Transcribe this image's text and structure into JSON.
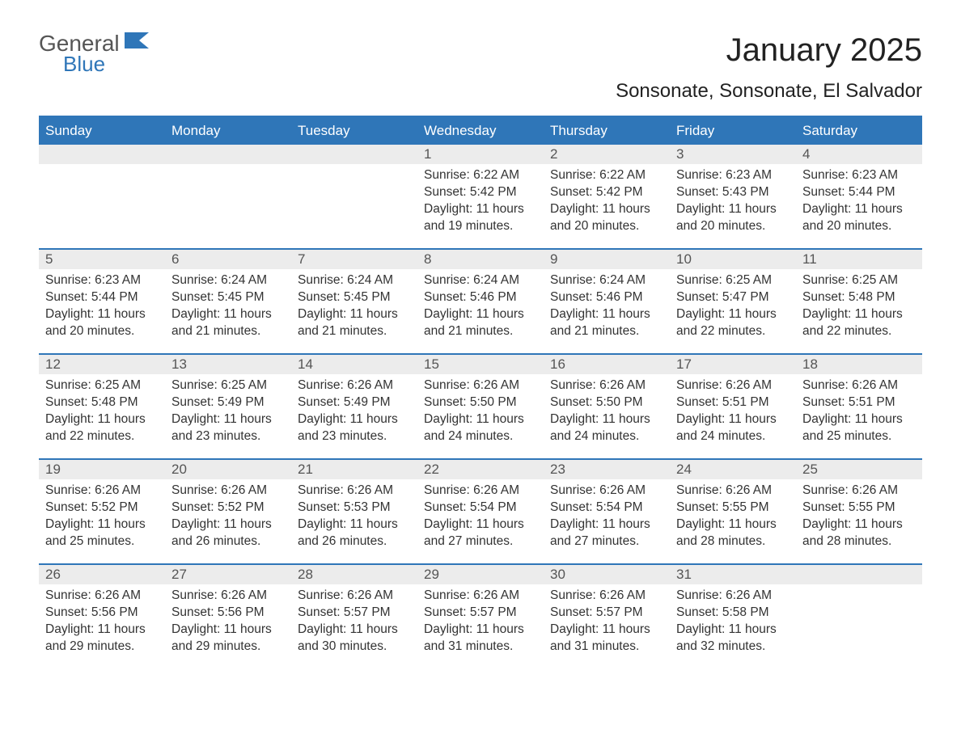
{
  "logo": {
    "word1": "General",
    "word2": "Blue",
    "flag_color": "#2f76b8"
  },
  "title": "January 2025",
  "location": "Sonsonate, Sonsonate, El Salvador",
  "colors": {
    "header_bg": "#2f76b8",
    "header_text": "#ffffff",
    "daynum_bg": "#ececec",
    "text": "#333333"
  },
  "weekdays": [
    "Sunday",
    "Monday",
    "Tuesday",
    "Wednesday",
    "Thursday",
    "Friday",
    "Saturday"
  ],
  "leading_blanks": 3,
  "days": [
    {
      "n": 1,
      "sunrise": "6:22 AM",
      "sunset": "5:42 PM",
      "h": 11,
      "m": 19
    },
    {
      "n": 2,
      "sunrise": "6:22 AM",
      "sunset": "5:42 PM",
      "h": 11,
      "m": 20
    },
    {
      "n": 3,
      "sunrise": "6:23 AM",
      "sunset": "5:43 PM",
      "h": 11,
      "m": 20
    },
    {
      "n": 4,
      "sunrise": "6:23 AM",
      "sunset": "5:44 PM",
      "h": 11,
      "m": 20
    },
    {
      "n": 5,
      "sunrise": "6:23 AM",
      "sunset": "5:44 PM",
      "h": 11,
      "m": 20
    },
    {
      "n": 6,
      "sunrise": "6:24 AM",
      "sunset": "5:45 PM",
      "h": 11,
      "m": 21
    },
    {
      "n": 7,
      "sunrise": "6:24 AM",
      "sunset": "5:45 PM",
      "h": 11,
      "m": 21
    },
    {
      "n": 8,
      "sunrise": "6:24 AM",
      "sunset": "5:46 PM",
      "h": 11,
      "m": 21
    },
    {
      "n": 9,
      "sunrise": "6:24 AM",
      "sunset": "5:46 PM",
      "h": 11,
      "m": 21
    },
    {
      "n": 10,
      "sunrise": "6:25 AM",
      "sunset": "5:47 PM",
      "h": 11,
      "m": 22
    },
    {
      "n": 11,
      "sunrise": "6:25 AM",
      "sunset": "5:48 PM",
      "h": 11,
      "m": 22
    },
    {
      "n": 12,
      "sunrise": "6:25 AM",
      "sunset": "5:48 PM",
      "h": 11,
      "m": 22
    },
    {
      "n": 13,
      "sunrise": "6:25 AM",
      "sunset": "5:49 PM",
      "h": 11,
      "m": 23
    },
    {
      "n": 14,
      "sunrise": "6:26 AM",
      "sunset": "5:49 PM",
      "h": 11,
      "m": 23
    },
    {
      "n": 15,
      "sunrise": "6:26 AM",
      "sunset": "5:50 PM",
      "h": 11,
      "m": 24
    },
    {
      "n": 16,
      "sunrise": "6:26 AM",
      "sunset": "5:50 PM",
      "h": 11,
      "m": 24
    },
    {
      "n": 17,
      "sunrise": "6:26 AM",
      "sunset": "5:51 PM",
      "h": 11,
      "m": 24
    },
    {
      "n": 18,
      "sunrise": "6:26 AM",
      "sunset": "5:51 PM",
      "h": 11,
      "m": 25
    },
    {
      "n": 19,
      "sunrise": "6:26 AM",
      "sunset": "5:52 PM",
      "h": 11,
      "m": 25
    },
    {
      "n": 20,
      "sunrise": "6:26 AM",
      "sunset": "5:52 PM",
      "h": 11,
      "m": 26
    },
    {
      "n": 21,
      "sunrise": "6:26 AM",
      "sunset": "5:53 PM",
      "h": 11,
      "m": 26
    },
    {
      "n": 22,
      "sunrise": "6:26 AM",
      "sunset": "5:54 PM",
      "h": 11,
      "m": 27
    },
    {
      "n": 23,
      "sunrise": "6:26 AM",
      "sunset": "5:54 PM",
      "h": 11,
      "m": 27
    },
    {
      "n": 24,
      "sunrise": "6:26 AM",
      "sunset": "5:55 PM",
      "h": 11,
      "m": 28
    },
    {
      "n": 25,
      "sunrise": "6:26 AM",
      "sunset": "5:55 PM",
      "h": 11,
      "m": 28
    },
    {
      "n": 26,
      "sunrise": "6:26 AM",
      "sunset": "5:56 PM",
      "h": 11,
      "m": 29
    },
    {
      "n": 27,
      "sunrise": "6:26 AM",
      "sunset": "5:56 PM",
      "h": 11,
      "m": 29
    },
    {
      "n": 28,
      "sunrise": "6:26 AM",
      "sunset": "5:57 PM",
      "h": 11,
      "m": 30
    },
    {
      "n": 29,
      "sunrise": "6:26 AM",
      "sunset": "5:57 PM",
      "h": 11,
      "m": 31
    },
    {
      "n": 30,
      "sunrise": "6:26 AM",
      "sunset": "5:57 PM",
      "h": 11,
      "m": 31
    },
    {
      "n": 31,
      "sunrise": "6:26 AM",
      "sunset": "5:58 PM",
      "h": 11,
      "m": 32
    }
  ],
  "labels": {
    "sunrise": "Sunrise:",
    "sunset": "Sunset:",
    "daylight": "Daylight:",
    "hours": "hours",
    "and": "and",
    "minutes": "minutes."
  }
}
